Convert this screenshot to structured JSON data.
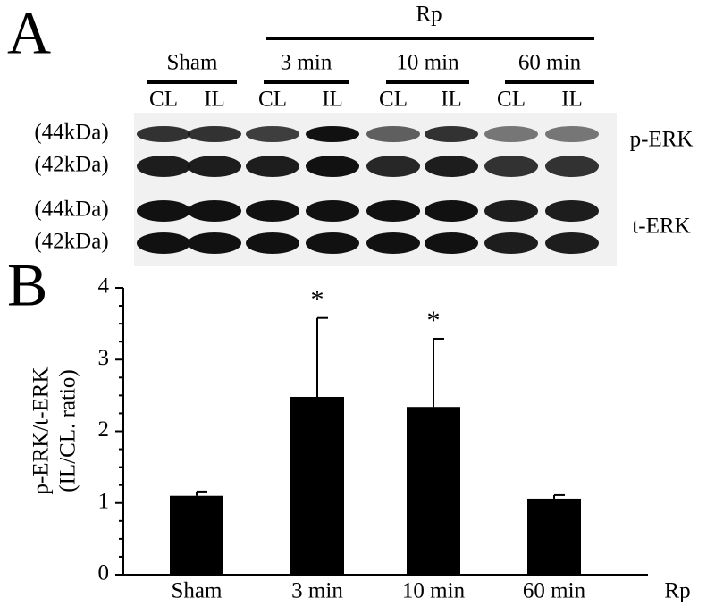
{
  "panel_a": {
    "label": "A",
    "group": "Rp",
    "conditions": [
      "Sham",
      "3 min",
      "10 min",
      "60 min"
    ],
    "lanes": [
      "CL",
      "IL",
      "CL",
      "IL",
      "CL",
      "IL",
      "CL",
      "IL"
    ],
    "band_sizes": [
      "(44kDa)",
      "(42kDa)",
      "(44kDa)",
      "(42kDa)"
    ],
    "blots": [
      "p-ERK",
      "t-ERK"
    ]
  },
  "chart_data": {
    "type": "bar",
    "panel_label": "B",
    "ylabel": [
      "p-ERK/t-ERK",
      "(IL/CL. ratio)"
    ],
    "xlabel": "Rp",
    "categories": [
      "Sham",
      "3 min",
      "10 min",
      "60 min"
    ],
    "values": [
      1.1,
      2.48,
      2.34,
      1.06
    ],
    "errors": [
      0.06,
      1.1,
      0.95,
      0.05
    ],
    "significance": [
      null,
      "*",
      "*",
      null
    ],
    "color": "#000000",
    "ylim": [
      0,
      4
    ],
    "yticks": [
      0,
      1,
      2,
      3,
      4
    ],
    "yminorticks": [
      0.25,
      0.5,
      0.75,
      1.25,
      1.5,
      1.75,
      2.25,
      2.5,
      2.75,
      3.25,
      3.5,
      3.75
    ]
  }
}
